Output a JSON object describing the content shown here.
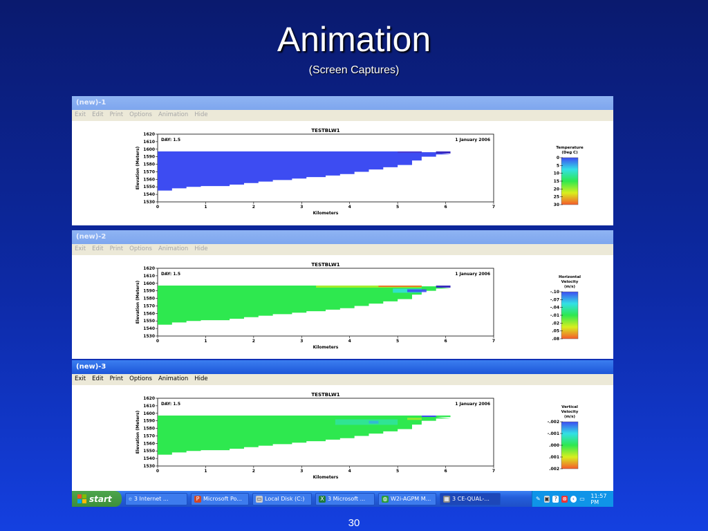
{
  "slide": {
    "title": "Animation",
    "subtitle": "(Screen Captures)",
    "page_number": "30"
  },
  "windows": [
    {
      "title": "(new)-1",
      "menu": [
        "Exit",
        "Edit",
        "Print",
        "Options",
        "Animation",
        "Hide"
      ],
      "state": "inactive"
    },
    {
      "title": "(new)-2",
      "menu": [
        "Exit",
        "Edit",
        "Print",
        "Options",
        "Animation",
        "Hide"
      ],
      "state": "inactive"
    },
    {
      "title": "(new)-3",
      "menu": [
        "Exit",
        "Edit",
        "Print",
        "Options",
        "Animation",
        "Hide"
      ],
      "state": "active"
    }
  ],
  "colors": {
    "water_cold": "#3d4cf2",
    "green": "#2ee84f",
    "title_blue": "#245edb",
    "taskbar_blue": "#245edb",
    "start_green": "#3c8f3a",
    "tray_blue": "#0f94e8"
  },
  "chart_data": [
    {
      "type": "heatmap",
      "title": "TESTBLW1",
      "day_label": "DAY: 1.5",
      "date_label": "1 January 2006",
      "xlabel": "Kilometers",
      "ylabel": "Elevation (Meters)",
      "xticks": [
        0,
        1,
        2,
        3,
        4,
        5,
        6,
        7
      ],
      "yticks": [
        1620,
        1610,
        1600,
        1590,
        1580,
        1570,
        1560,
        1550,
        1540,
        1530
      ],
      "xlim": [
        0,
        7
      ],
      "ylim": [
        1530,
        1620
      ],
      "legend": {
        "title": "Temperature (Deg C)",
        "labels": [
          "0",
          "5",
          "10",
          "15",
          "20",
          "25",
          "30"
        ]
      },
      "field": "temperature",
      "water_surface": 1597
    },
    {
      "type": "heatmap",
      "title": "TESTBLW1",
      "day_label": "DAY: 1.5",
      "date_label": "1 January 2006",
      "xlabel": "Kilometers",
      "ylabel": "Elevation (Meters)",
      "xticks": [
        0,
        1,
        2,
        3,
        4,
        5,
        6,
        7
      ],
      "yticks": [
        1620,
        1610,
        1600,
        1590,
        1580,
        1570,
        1560,
        1550,
        1540,
        1530
      ],
      "xlim": [
        0,
        7
      ],
      "ylim": [
        1530,
        1620
      ],
      "legend": {
        "title": "Horizontal Velocity (m/s)",
        "labels": [
          "-.10",
          "-.07",
          "-.04",
          "-.01",
          ".02",
          ".05",
          ".08"
        ]
      },
      "field": "horizontal velocity",
      "water_surface": 1597
    },
    {
      "type": "heatmap",
      "title": "TESTBLW1",
      "day_label": "DAY: 1.5",
      "date_label": "1 January 2006",
      "xlabel": "Kilometers",
      "ylabel": "Elevation (Meters)",
      "xticks": [
        0,
        1,
        2,
        3,
        4,
        5,
        6,
        7
      ],
      "yticks": [
        1620,
        1610,
        1600,
        1590,
        1580,
        1570,
        1560,
        1550,
        1540,
        1530
      ],
      "xlim": [
        0,
        7
      ],
      "ylim": [
        1530,
        1620
      ],
      "legend": {
        "title": "Vertical Velocity (m/s)",
        "labels": [
          "-.002",
          "-.001",
          ".000",
          ".001",
          ".002"
        ]
      },
      "field": "vertical velocity",
      "water_surface": 1597
    }
  ],
  "bottom_profile": [
    {
      "x": 0,
      "elev": 1540
    },
    {
      "x": 0.3,
      "elev": 1545
    },
    {
      "x": 0.6,
      "elev": 1548
    },
    {
      "x": 0.9,
      "elev": 1550
    },
    {
      "x": 1.5,
      "elev": 1551
    },
    {
      "x": 1.8,
      "elev": 1553
    },
    {
      "x": 2.1,
      "elev": 1555
    },
    {
      "x": 2.4,
      "elev": 1557
    },
    {
      "x": 2.8,
      "elev": 1559
    },
    {
      "x": 3.1,
      "elev": 1561
    },
    {
      "x": 3.5,
      "elev": 1563
    },
    {
      "x": 3.8,
      "elev": 1565
    },
    {
      "x": 4.1,
      "elev": 1567
    },
    {
      "x": 4.4,
      "elev": 1570
    },
    {
      "x": 4.7,
      "elev": 1573
    },
    {
      "x": 5.0,
      "elev": 1576
    },
    {
      "x": 5.3,
      "elev": 1579
    },
    {
      "x": 5.5,
      "elev": 1585
    },
    {
      "x": 5.8,
      "elev": 1590
    },
    {
      "x": 6.1,
      "elev": 1593
    }
  ],
  "taskbar": {
    "start": "start",
    "tasks": [
      "3 Internet ...",
      "Microsoft Po...",
      "Local Disk (C:)",
      "3 Microsoft ...",
      "W2i-AGPM M...",
      "3 CE-QUAL-..."
    ],
    "clock": "11:57 PM"
  }
}
